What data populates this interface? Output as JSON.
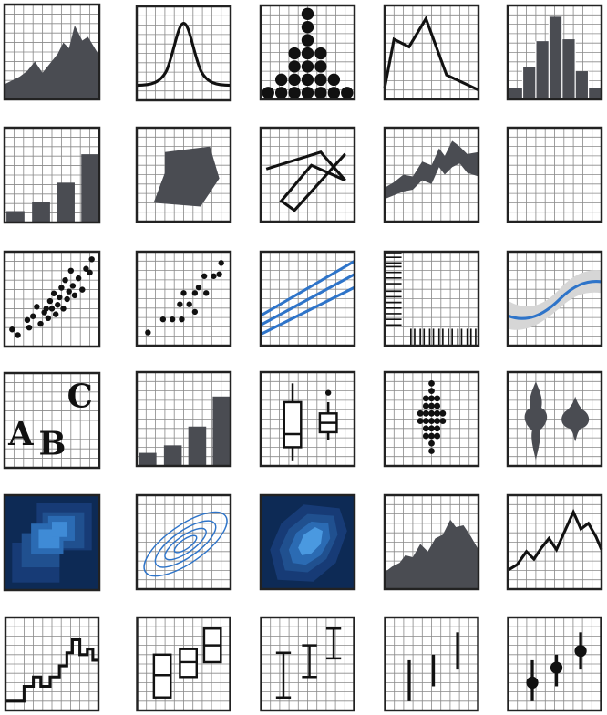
{
  "gallery": {
    "rows": [
      [
        "area-chart",
        "density-curve",
        "dot-plot",
        "line-chart",
        "histogram"
      ],
      [
        "bar-chart",
        "polygon-shape",
        "path-chart",
        "ribbon-chart",
        "blank-grid"
      ],
      [
        "scatter-jitter",
        "scatter-points",
        "abline-lines",
        "rug-plot",
        "smooth-band"
      ],
      [
        "text-labels",
        "column-chart",
        "boxplot",
        "dotplot-stack",
        "violin-plot"
      ],
      [
        "bin2d-heatmap",
        "density-contour",
        "hex-heatmap",
        "area-chart-2",
        "line-chart-2"
      ],
      [
        "step-chart",
        "crossbar-chart",
        "errorbar-chart",
        "linerange-chart",
        "pointrange-chart"
      ]
    ],
    "text_labels": {
      "a": "A",
      "b": "B",
      "c": "C"
    },
    "colors": {
      "grid": "#8a8a8a",
      "frame": "#222222",
      "fill": "#4a4c52",
      "ink": "#111111",
      "blue": "#2e74c9",
      "band": "#d6d6d6",
      "navy": "#0d2a55"
    }
  }
}
